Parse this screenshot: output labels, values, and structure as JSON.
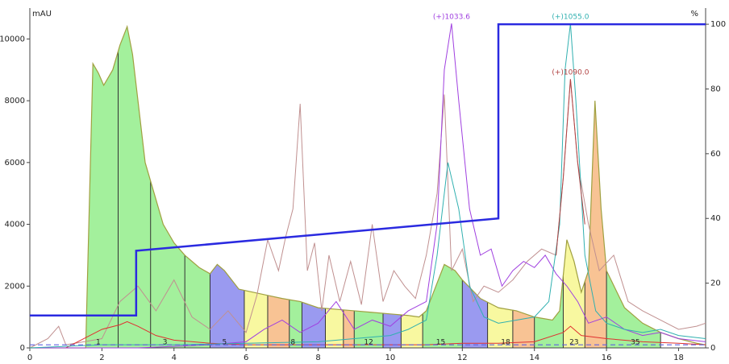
{
  "chart_data": {
    "type": "chromatogram",
    "y_label": "mAU",
    "y2_label": "%",
    "xlim": [
      0,
      18.75
    ],
    "xticks": [
      0,
      2,
      4,
      6,
      8,
      10,
      12,
      14,
      16,
      18
    ],
    "ylim": [
      0,
      11000
    ],
    "yticks": [
      0,
      2000,
      4000,
      6000,
      8000,
      10000
    ],
    "y2lim": [
      0,
      105
    ],
    "y2ticks": [
      0,
      20,
      40,
      60,
      80,
      100
    ],
    "threshold": 100,
    "threshold_color": "#6060e0",
    "fraction_edges": [
      1.55,
      2.45,
      3.35,
      4.3,
      5.0,
      5.95,
      6.6,
      7.2,
      7.55,
      8.2,
      8.7,
      9.0,
      9.8,
      10.3,
      10.9,
      12.0,
      12.7,
      13.4,
      14.0,
      14.8,
      15.4,
      16.0,
      17.5
    ],
    "fraction_colors": [
      "#a3f09c",
      "#a3f09c",
      "#a3f09c",
      "#a3f09c",
      "#9a9af0",
      "#f8f8a0",
      "#f8c394",
      "#a3f09c",
      "#9a9af0",
      "#f8f8a0",
      "#f8c394",
      "#a3f09c",
      "#9a9af0",
      "#f8f8a0",
      "#a3f09c",
      "#9a9af0",
      "#f8f8a0",
      "#f8c394",
      "#a3f09c",
      "#f8f8a0",
      "#f8c394",
      "#a3f09c"
    ],
    "fraction_labels": [
      {
        "x": 1.9,
        "label": "1"
      },
      {
        "x": 3.75,
        "label": "3"
      },
      {
        "x": 5.4,
        "label": "5"
      },
      {
        "x": 7.3,
        "label": "8"
      },
      {
        "x": 9.4,
        "label": "12"
      },
      {
        "x": 11.4,
        "label": "15"
      },
      {
        "x": 13.2,
        "label": "18"
      },
      {
        "x": 15.1,
        "label": "23"
      },
      {
        "x": 16.8,
        "label": "35"
      }
    ],
    "series": [
      {
        "color": "#a0a040",
        "role": "uv",
        "x": [
          0,
          1.5,
          1.55,
          1.75,
          1.9,
          2.05,
          2.3,
          2.5,
          2.7,
          2.85,
          3.0,
          3.2,
          3.5,
          3.7,
          4.0,
          4.3,
          4.7,
          5.0,
          5.2,
          5.4,
          5.8,
          6.2,
          6.6,
          7.0,
          7.5,
          8.0,
          8.5,
          9.0,
          9.5,
          10.0,
          10.5,
          10.8,
          11.0,
          11.2,
          11.5,
          11.8,
          12.0,
          12.5,
          13.0,
          13.5,
          14.0,
          14.5,
          14.7,
          14.9,
          15.1,
          15.3,
          15.5,
          15.68,
          15.85,
          16.0,
          16.5,
          17.0,
          17.5,
          18.0,
          18.5,
          18.75
        ],
        "values": [
          0,
          0,
          0,
          9200,
          8900,
          8500,
          9000,
          9800,
          10400,
          9500,
          8000,
          6000,
          4800,
          4000,
          3400,
          3000,
          2600,
          2400,
          2700,
          2500,
          1900,
          1800,
          1700,
          1600,
          1500,
          1300,
          1250,
          1200,
          1150,
          1100,
          1050,
          1000,
          1200,
          1800,
          2700,
          2500,
          2200,
          1600,
          1300,
          1200,
          1000,
          900,
          1200,
          3500,
          2800,
          1800,
          2500,
          8000,
          4500,
          2500,
          1300,
          800,
          500,
          300,
          150,
          100
        ]
      },
      {
        "color": "#c09090",
        "x": [
          0,
          0.5,
          0.8,
          1,
          1.5,
          2,
          2.5,
          3,
          3.5,
          4,
          4.5,
          5,
          5.5,
          6,
          6.3,
          6.6,
          6.9,
          7.1,
          7.3,
          7.5,
          7.7,
          7.9,
          8.1,
          8.3,
          8.6,
          8.9,
          9.2,
          9.5,
          9.8,
          10.1,
          10.4,
          10.7,
          11,
          11.3,
          11.5,
          11.7,
          12,
          12.3,
          12.6,
          13,
          13.4,
          13.8,
          14.2,
          14.6,
          14.8,
          15.0,
          15.2,
          15.5,
          15.8,
          16.2,
          16.6,
          17,
          17.5,
          18,
          18.5,
          18.75
        ],
        "values": [
          0,
          300,
          700,
          100,
          200,
          300,
          1500,
          2000,
          1200,
          2200,
          1000,
          600,
          1200,
          500,
          1700,
          3500,
          2500,
          3600,
          4500,
          7900,
          2500,
          3400,
          1200,
          3000,
          1500,
          2800,
          1400,
          4000,
          1500,
          2500,
          2000,
          1600,
          3000,
          5000,
          8200,
          2500,
          3200,
          1500,
          2000,
          1800,
          2200,
          2800,
          3200,
          3000,
          5500,
          8700,
          6000,
          4000,
          2500,
          3000,
          1500,
          1200,
          900,
          600,
          700,
          800
        ]
      },
      {
        "color": "#e03030",
        "x": [
          0,
          1,
          1.5,
          2,
          2.5,
          2.7,
          3,
          3.5,
          4,
          5,
          6,
          7,
          8,
          9,
          10,
          11,
          12,
          13,
          14,
          14.8,
          15,
          15.3,
          16,
          17,
          18,
          18.75
        ],
        "values": [
          0,
          0,
          300,
          600,
          750,
          850,
          700,
          400,
          250,
          150,
          100,
          100,
          100,
          100,
          100,
          100,
          150,
          150,
          200,
          500,
          700,
          400,
          300,
          200,
          150,
          100
        ]
      },
      {
        "name": "(+)1033.6",
        "color": "#a040e0",
        "x": [
          0,
          1,
          2,
          3,
          4,
          5,
          6,
          6.5,
          7,
          7.5,
          8,
          8.5,
          9,
          9.5,
          10,
          10.5,
          11,
          11.3,
          11.5,
          11.7,
          11.9,
          12.2,
          12.5,
          12.8,
          13.1,
          13.4,
          13.7,
          14,
          14.3,
          14.6,
          14.9,
          15.2,
          15.5,
          16,
          16.5,
          17,
          17.5,
          18,
          18.75
        ],
        "values": [
          0,
          0,
          0,
          0,
          50,
          100,
          200,
          600,
          900,
          500,
          800,
          1500,
          600,
          900,
          700,
          1200,
          1500,
          4000,
          9000,
          10500,
          8000,
          4500,
          3000,
          3200,
          2000,
          2500,
          2800,
          2600,
          3000,
          2400,
          2000,
          1500,
          800,
          1000,
          600,
          400,
          500,
          300,
          200
        ]
      },
      {
        "name": "(+)1055.0",
        "color": "#30b0b0",
        "x": [
          0,
          2,
          4,
          6,
          8,
          9,
          10,
          10.5,
          11,
          11.3,
          11.6,
          11.9,
          12.2,
          12.6,
          13,
          13.5,
          14,
          14.4,
          14.7,
          14.85,
          15.0,
          15.15,
          15.4,
          15.7,
          16,
          16.5,
          17,
          17.5,
          18,
          18.75
        ],
        "values": [
          0,
          100,
          100,
          150,
          200,
          300,
          400,
          600,
          900,
          3000,
          6000,
          4500,
          2000,
          1000,
          800,
          900,
          1000,
          1500,
          4000,
          9000,
          10500,
          8000,
          3000,
          1200,
          800,
          600,
          500,
          600,
          400,
          300
        ]
      },
      {
        "name": "(+)1090.0",
        "color": "#b04040",
        "hidden_trace": true,
        "x": [
          14.6,
          14.8,
          15.0,
          15.2,
          15.4
        ],
        "values": [
          3000,
          5500,
          8700,
          6000,
          4000
        ]
      },
      {
        "color": "#2a2ae0",
        "axis": "y2",
        "role": "gradient",
        "x": [
          0,
          2.95,
          2.95,
          13.0,
          13.0,
          18.75
        ],
        "values": [
          10,
          10,
          30,
          40,
          100,
          100
        ]
      }
    ]
  }
}
